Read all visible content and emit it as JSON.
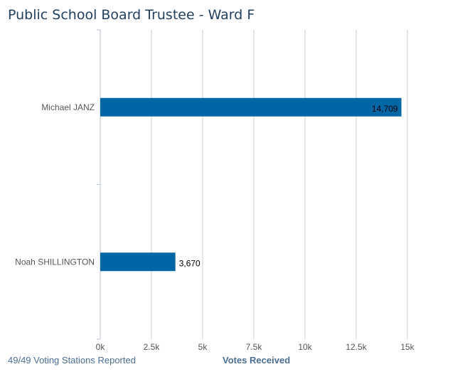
{
  "chart_data": {
    "type": "bar",
    "orientation": "horizontal",
    "title": "Public School Board Trustee - Ward F",
    "categories": [
      "Michael JANZ",
      "Noah SHILLINGTON"
    ],
    "values": [
      14709,
      3670
    ],
    "data_labels": [
      "14,709",
      "3,670"
    ],
    "xlabel": "Votes Received",
    "xlim": [
      0,
      15000
    ],
    "xticks": [
      0,
      2500,
      5000,
      7500,
      10000,
      12500,
      15000
    ],
    "xtick_labels": [
      "0k",
      "2.5k",
      "5k",
      "7.5k",
      "10k",
      "12.5k",
      "15k"
    ],
    "grid": true,
    "bar_color": "#0066a6"
  },
  "footer": {
    "reported": "49/49 Voting Stations Reported"
  }
}
